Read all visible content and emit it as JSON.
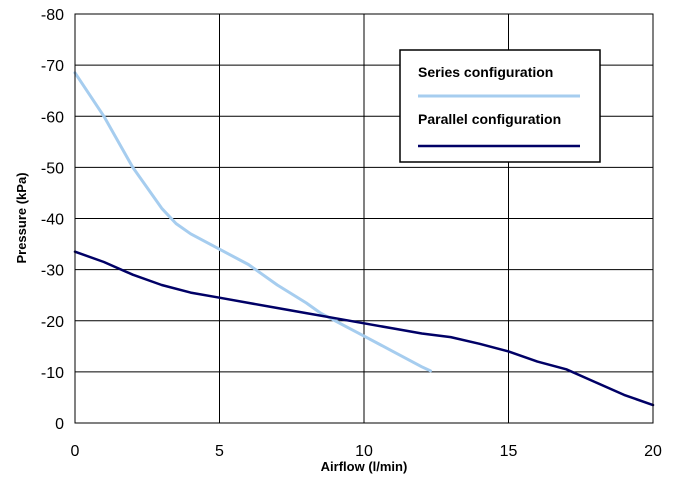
{
  "chart_data": {
    "type": "line",
    "xlabel": "Airflow (l/min)",
    "ylabel": "Pressure (kPa)",
    "xlim": [
      0,
      20
    ],
    "ylim": [
      0,
      -80
    ],
    "x_ticks": [
      "0",
      "5",
      "10",
      "15",
      "20"
    ],
    "y_ticks": [
      "0",
      "-10",
      "-20",
      "-30",
      "-40",
      "-50",
      "-60",
      "-70",
      "-80"
    ],
    "grid": true,
    "legend_position": "top-right",
    "series": [
      {
        "name": "Series configuration",
        "color": "#a6cdef",
        "points": [
          [
            0,
            -68.5
          ],
          [
            1,
            -60
          ],
          [
            2,
            -50
          ],
          [
            3,
            -42
          ],
          [
            3.5,
            -39
          ],
          [
            4,
            -37
          ],
          [
            5,
            -34
          ],
          [
            6,
            -31
          ],
          [
            7,
            -27
          ],
          [
            8,
            -23.5
          ],
          [
            8.5,
            -21.5
          ],
          [
            9,
            -20
          ],
          [
            10,
            -17
          ],
          [
            11,
            -14
          ],
          [
            12,
            -11
          ],
          [
            12.3,
            -10.2
          ]
        ]
      },
      {
        "name": "Parallel configuration",
        "color": "#000066",
        "points": [
          [
            0,
            -33.5
          ],
          [
            1,
            -31.5
          ],
          [
            2,
            -29
          ],
          [
            3,
            -27
          ],
          [
            4,
            -25.5
          ],
          [
            5,
            -24.5
          ],
          [
            6,
            -23.5
          ],
          [
            7,
            -22.5
          ],
          [
            8,
            -21.5
          ],
          [
            9,
            -20.5
          ],
          [
            10,
            -19.5
          ],
          [
            11,
            -18.5
          ],
          [
            12,
            -17.5
          ],
          [
            13,
            -16.8
          ],
          [
            14,
            -15.5
          ],
          [
            15,
            -14
          ],
          [
            16,
            -12
          ],
          [
            17,
            -10.5
          ],
          [
            18,
            -8
          ],
          [
            19,
            -5.5
          ],
          [
            20,
            -3.5
          ]
        ]
      }
    ]
  }
}
